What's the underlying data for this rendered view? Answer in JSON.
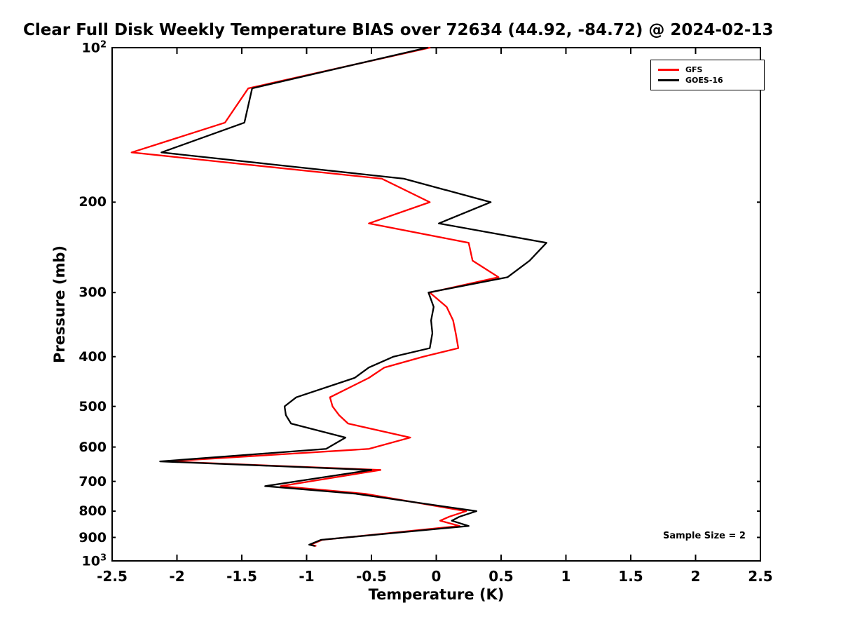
{
  "chart_data": {
    "type": "line",
    "title": "Clear Full Disk Weekly Temperature BIAS over 72634 (44.92, -84.72) @ 2024-02-13",
    "xlabel": "Temperature (K)",
    "ylabel": "Pressure (mb)",
    "xlim": [
      -2.5,
      2.5
    ],
    "ylim": [
      100,
      1000
    ],
    "y_scale": "log",
    "y_axis_inverted": true,
    "grid": false,
    "legend_position": "top-right",
    "annotation": "Sample Size = 2",
    "x_ticks": [
      -2.5,
      -2,
      -1.5,
      -1,
      -0.5,
      0,
      0.5,
      1,
      1.5,
      2,
      2.5
    ],
    "x_tick_labels": [
      "-2.5",
      "-2",
      "-1.5",
      "-1",
      "-0.5",
      "0",
      "0.5",
      "1",
      "1.5",
      "2",
      "2.5"
    ],
    "y_decade_ticks": [
      {
        "p": 100,
        "base": "10",
        "exp": "2"
      },
      {
        "p": 1000,
        "base": "10",
        "exp": "3"
      }
    ],
    "y_minor_ticks": [
      200,
      300,
      400,
      500,
      600,
      700,
      800,
      900
    ],
    "y_minor_tick_labels": [
      "200",
      "300",
      "400",
      "500",
      "600",
      "700",
      "800",
      "900"
    ],
    "pressure_mb": [
      100,
      120,
      140,
      160,
      180,
      200,
      220,
      240,
      260,
      280,
      300,
      320,
      340,
      360,
      385,
      400,
      420,
      440,
      480,
      500,
      520,
      540,
      575,
      605,
      640,
      665,
      715,
      740,
      800,
      820,
      835,
      855,
      910,
      930,
      935
    ],
    "series": [
      {
        "name": "GFS",
        "color": "#ff0000",
        "values": [
          -0.05,
          -1.45,
          -1.63,
          -2.35,
          -0.42,
          -0.05,
          -0.52,
          0.25,
          0.28,
          0.48,
          -0.05,
          0.08,
          0.13,
          0.15,
          0.17,
          -0.1,
          -0.4,
          -0.52,
          -0.82,
          -0.8,
          -0.75,
          -0.68,
          -0.2,
          -0.52,
          -2.08,
          -0.43,
          -1.2,
          -0.55,
          0.23,
          0.1,
          0.03,
          0.18,
          -0.88,
          -0.97,
          -0.93
        ]
      },
      {
        "name": "GOES-16",
        "color": "#000000",
        "values": [
          -0.07,
          -1.42,
          -1.48,
          -2.12,
          -0.25,
          0.42,
          0.02,
          0.85,
          0.72,
          0.55,
          -0.06,
          -0.02,
          -0.04,
          -0.03,
          -0.05,
          -0.33,
          -0.52,
          -0.63,
          -1.08,
          -1.17,
          -1.16,
          -1.12,
          -0.7,
          -0.85,
          -2.13,
          -0.5,
          -1.32,
          -0.62,
          0.31,
          0.18,
          0.12,
          0.25,
          -0.89,
          -0.98,
          -0.94
        ]
      }
    ]
  }
}
